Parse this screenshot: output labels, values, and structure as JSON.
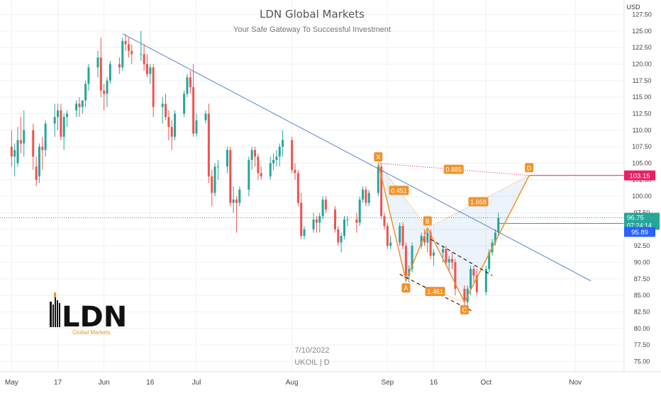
{
  "header": {
    "title": "LDN Global Markets",
    "subtitle": "Your Safe Gateway To Successful Investment"
  },
  "footer": {
    "date": "7/10/2022",
    "symbol": "UKOIL | D"
  },
  "logo": {
    "letters": "LDN",
    "tagline": "Global Markets"
  },
  "price_scale": {
    "currency": "USD",
    "current_price": "96.75",
    "countdown": "07:24:14",
    "level_blue": "95.89",
    "level_red": "103.15"
  },
  "colors": {
    "bull": "#26a69a",
    "bear": "#ef5350",
    "trendline": "#5b7fd6",
    "pattern": "#f0922b",
    "target": "#e91e63",
    "price_badge": "#26a69a",
    "level_badge": "#2962ff"
  },
  "chart_data": {
    "type": "candlestick",
    "instrument": "UKOIL",
    "timeframe": "D",
    "ylim": [
      75,
      127.5
    ],
    "y_ticks": [
      75,
      77.5,
      80,
      82.5,
      85,
      87.5,
      90,
      92.5,
      95,
      97.5,
      100,
      102.5,
      105,
      107.5,
      110,
      112.5,
      115,
      117.5,
      120,
      122.5,
      125,
      127.5
    ],
    "x_ticks": [
      {
        "label": "May",
        "date": "2022-05-02"
      },
      {
        "label": "17",
        "date": "2022-05-17"
      },
      {
        "label": "Jun",
        "date": "2022-06-01"
      },
      {
        "label": "16",
        "date": "2022-06-16"
      },
      {
        "label": "Jul",
        "date": "2022-07-01"
      },
      {
        "label": "Aug",
        "date": "2022-08-01"
      },
      {
        "label": "Sep",
        "date": "2022-09-01"
      },
      {
        "label": "16",
        "date": "2022-09-16"
      },
      {
        "label": "Oct",
        "date": "2022-10-03"
      },
      {
        "label": "Nov",
        "date": "2022-11-01"
      }
    ],
    "candles": [
      {
        "d": "2022-05-02",
        "o": 107.5,
        "h": 110,
        "l": 104.5,
        "c": 106
      },
      {
        "d": "2022-05-03",
        "o": 106,
        "h": 108,
        "l": 103,
        "c": 107
      },
      {
        "d": "2022-05-04",
        "o": 105,
        "h": 110.5,
        "l": 104.5,
        "c": 108.5
      },
      {
        "d": "2022-05-05",
        "o": 108.5,
        "h": 112,
        "l": 106.5,
        "c": 108
      },
      {
        "d": "2022-05-06",
        "o": 108,
        "h": 113,
        "l": 106,
        "c": 110
      },
      {
        "d": "2022-05-09",
        "o": 110,
        "h": 111,
        "l": 104,
        "c": 106
      },
      {
        "d": "2022-05-10",
        "o": 104.5,
        "h": 106,
        "l": 101.5,
        "c": 102.5
      },
      {
        "d": "2022-05-11",
        "o": 103,
        "h": 108,
        "l": 102,
        "c": 107.5
      },
      {
        "d": "2022-05-12",
        "o": 107.5,
        "h": 109,
        "l": 104,
        "c": 107
      },
      {
        "d": "2022-05-13",
        "o": 107,
        "h": 111.5,
        "l": 106,
        "c": 111
      },
      {
        "d": "2022-05-16",
        "o": 111,
        "h": 114,
        "l": 109,
        "c": 112
      },
      {
        "d": "2022-05-17",
        "o": 112,
        "h": 114,
        "l": 110,
        "c": 113
      },
      {
        "d": "2022-05-18",
        "o": 113,
        "h": 114,
        "l": 108.5,
        "c": 109
      },
      {
        "d": "2022-05-19",
        "o": 109,
        "h": 112.5,
        "l": 107,
        "c": 112
      },
      {
        "d": "2022-05-20",
        "o": 112,
        "h": 113,
        "l": 110.5,
        "c": 112.5
      },
      {
        "d": "2022-05-23",
        "o": 113,
        "h": 114.5,
        "l": 112,
        "c": 114
      },
      {
        "d": "2022-05-24",
        "o": 114,
        "h": 115,
        "l": 112,
        "c": 113.5
      },
      {
        "d": "2022-05-25",
        "o": 113.5,
        "h": 114.5,
        "l": 112.5,
        "c": 114.5
      },
      {
        "d": "2022-05-26",
        "o": 114.5,
        "h": 117.5,
        "l": 113.5,
        "c": 117
      },
      {
        "d": "2022-05-27",
        "o": 117,
        "h": 120,
        "l": 116,
        "c": 119.5
      },
      {
        "d": "2022-05-30",
        "o": 119.5,
        "h": 122,
        "l": 118,
        "c": 121
      },
      {
        "d": "2022-05-31",
        "o": 121,
        "h": 124,
        "l": 115,
        "c": 116
      },
      {
        "d": "2022-06-01",
        "o": 116,
        "h": 117,
        "l": 113,
        "c": 115.5
      },
      {
        "d": "2022-06-02",
        "o": 115.5,
        "h": 118,
        "l": 113.5,
        "c": 117.5
      },
      {
        "d": "2022-06-03",
        "o": 117.5,
        "h": 120.5,
        "l": 117,
        "c": 120
      },
      {
        "d": "2022-06-06",
        "o": 120,
        "h": 121,
        "l": 118.5,
        "c": 119.5
      },
      {
        "d": "2022-06-07",
        "o": 119.5,
        "h": 124,
        "l": 119,
        "c": 123.5
      },
      {
        "d": "2022-06-08",
        "o": 123.5,
        "h": 124.5,
        "l": 122,
        "c": 123
      },
      {
        "d": "2022-06-09",
        "o": 123,
        "h": 124,
        "l": 121,
        "c": 122
      },
      {
        "d": "2022-06-10",
        "o": 122,
        "h": 123,
        "l": 120,
        "c": 121.5
      },
      {
        "d": "2022-06-13",
        "o": 121.5,
        "h": 125,
        "l": 120.5,
        "c": 121.5
      },
      {
        "d": "2022-06-14",
        "o": 121.5,
        "h": 123,
        "l": 119,
        "c": 120
      },
      {
        "d": "2022-06-15",
        "o": 120,
        "h": 121.5,
        "l": 118,
        "c": 118.5
      },
      {
        "d": "2022-06-16",
        "o": 118.5,
        "h": 120,
        "l": 117,
        "c": 119.5
      },
      {
        "d": "2022-06-17",
        "o": 119.5,
        "h": 120,
        "l": 112,
        "c": 113.5
      },
      {
        "d": "2022-06-20",
        "o": 113.5,
        "h": 115,
        "l": 111,
        "c": 114
      },
      {
        "d": "2022-06-21",
        "o": 114,
        "h": 115.5,
        "l": 111.5,
        "c": 112
      },
      {
        "d": "2022-06-22",
        "o": 112,
        "h": 113,
        "l": 108.5,
        "c": 110.5
      },
      {
        "d": "2022-06-23",
        "o": 110.5,
        "h": 111.5,
        "l": 107,
        "c": 109
      },
      {
        "d": "2022-06-24",
        "o": 109,
        "h": 113,
        "l": 108.5,
        "c": 112.5
      },
      {
        "d": "2022-06-27",
        "o": 112.5,
        "h": 116,
        "l": 112,
        "c": 115.5
      },
      {
        "d": "2022-06-28",
        "o": 115.5,
        "h": 118.5,
        "l": 115,
        "c": 118
      },
      {
        "d": "2022-06-29",
        "o": 118,
        "h": 119,
        "l": 115.5,
        "c": 116.5
      },
      {
        "d": "2022-06-30",
        "o": 116.5,
        "h": 120,
        "l": 109,
        "c": 109.5
      },
      {
        "d": "2022-07-01",
        "o": 109.5,
        "h": 112.5,
        "l": 109,
        "c": 111.5
      },
      {
        "d": "2022-07-04",
        "o": 111.5,
        "h": 113,
        "l": 111,
        "c": 112.5
      },
      {
        "d": "2022-07-05",
        "o": 112.5,
        "h": 114,
        "l": 102,
        "c": 103
      },
      {
        "d": "2022-07-06",
        "o": 103,
        "h": 104,
        "l": 98.5,
        "c": 100.5
      },
      {
        "d": "2022-07-07",
        "o": 100.5,
        "h": 105,
        "l": 100,
        "c": 104.5
      },
      {
        "d": "2022-07-08",
        "o": 104.5,
        "h": 105.5,
        "l": 102.5,
        "c": 104.5
      },
      {
        "d": "2022-07-11",
        "o": 104.5,
        "h": 107.5,
        "l": 103.5,
        "c": 107
      },
      {
        "d": "2022-07-12",
        "o": 107,
        "h": 107.5,
        "l": 98.5,
        "c": 99
      },
      {
        "d": "2022-07-13",
        "o": 99,
        "h": 101.5,
        "l": 97.5,
        "c": 99.5
      },
      {
        "d": "2022-07-14",
        "o": 99.5,
        "h": 100,
        "l": 94.5,
        "c": 99
      },
      {
        "d": "2022-07-15",
        "o": 99,
        "h": 101.5,
        "l": 98.5,
        "c": 101
      },
      {
        "d": "2022-07-18",
        "o": 101,
        "h": 106,
        "l": 100,
        "c": 105.5
      },
      {
        "d": "2022-07-19",
        "o": 105.5,
        "h": 107.5,
        "l": 104,
        "c": 107
      },
      {
        "d": "2022-07-20",
        "o": 107,
        "h": 107.5,
        "l": 104.5,
        "c": 106
      },
      {
        "d": "2022-07-21",
        "o": 106,
        "h": 106.5,
        "l": 102.5,
        "c": 103.5
      },
      {
        "d": "2022-07-22",
        "o": 103.5,
        "h": 104.5,
        "l": 102.5,
        "c": 103
      },
      {
        "d": "2022-07-25",
        "o": 103,
        "h": 106,
        "l": 102.5,
        "c": 105
      },
      {
        "d": "2022-07-26",
        "o": 105,
        "h": 106.5,
        "l": 104,
        "c": 105.5
      },
      {
        "d": "2022-07-27",
        "o": 105.5,
        "h": 107,
        "l": 104.5,
        "c": 106
      },
      {
        "d": "2022-07-28",
        "o": 106,
        "h": 108,
        "l": 104.5,
        "c": 107.5
      },
      {
        "d": "2022-07-29",
        "o": 107.5,
        "h": 110,
        "l": 106,
        "c": 108.5
      },
      {
        "d": "2022-08-01",
        "o": 108.5,
        "h": 109,
        "l": 103.5,
        "c": 104
      },
      {
        "d": "2022-08-02",
        "o": 104,
        "h": 105,
        "l": 102.5,
        "c": 103.5
      },
      {
        "d": "2022-08-03",
        "o": 103.5,
        "h": 104,
        "l": 98.5,
        "c": 99
      },
      {
        "d": "2022-08-04",
        "o": 99,
        "h": 100.5,
        "l": 93.5,
        "c": 94
      },
      {
        "d": "2022-08-05",
        "o": 94,
        "h": 95.5,
        "l": 93.5,
        "c": 95
      },
      {
        "d": "2022-08-08",
        "o": 95,
        "h": 97.5,
        "l": 94.5,
        "c": 96.5
      },
      {
        "d": "2022-08-09",
        "o": 96.5,
        "h": 97,
        "l": 94.5,
        "c": 96
      },
      {
        "d": "2022-08-10",
        "o": 96,
        "h": 97.5,
        "l": 94.5,
        "c": 97
      },
      {
        "d": "2022-08-11",
        "o": 97,
        "h": 100,
        "l": 96.5,
        "c": 99.5
      },
      {
        "d": "2022-08-12",
        "o": 99.5,
        "h": 100,
        "l": 97.5,
        "c": 98
      },
      {
        "d": "2022-08-15",
        "o": 98,
        "h": 98.5,
        "l": 94.5,
        "c": 95
      },
      {
        "d": "2022-08-16",
        "o": 95,
        "h": 95.5,
        "l": 92.5,
        "c": 93
      },
      {
        "d": "2022-08-17",
        "o": 93,
        "h": 94.5,
        "l": 91.5,
        "c": 94
      },
      {
        "d": "2022-08-18",
        "o": 94,
        "h": 97,
        "l": 93.5,
        "c": 96.5
      },
      {
        "d": "2022-08-19",
        "o": 96.5,
        "h": 97,
        "l": 95.5,
        "c": 96.5
      },
      {
        "d": "2022-08-22",
        "o": 96.5,
        "h": 97.5,
        "l": 94.5,
        "c": 96
      },
      {
        "d": "2022-08-23",
        "o": 96,
        "h": 100,
        "l": 95.5,
        "c": 99.5
      },
      {
        "d": "2022-08-24",
        "o": 99.5,
        "h": 101.5,
        "l": 99,
        "c": 101
      },
      {
        "d": "2022-08-25",
        "o": 101,
        "h": 101.5,
        "l": 98.5,
        "c": 99
      },
      {
        "d": "2022-08-26",
        "o": 99,
        "h": 101,
        "l": 98.5,
        "c": 100.5
      },
      {
        "d": "2022-08-29",
        "o": 100.5,
        "h": 105,
        "l": 100,
        "c": 104.5
      },
      {
        "d": "2022-08-30",
        "o": 104.5,
        "h": 105,
        "l": 96.5,
        "c": 97
      },
      {
        "d": "2022-08-31",
        "o": 97,
        "h": 97.5,
        "l": 95,
        "c": 95.5
      },
      {
        "d": "2022-09-01",
        "o": 95.5,
        "h": 96,
        "l": 92,
        "c": 92.5
      },
      {
        "d": "2022-09-02",
        "o": 92.5,
        "h": 94,
        "l": 92,
        "c": 93
      },
      {
        "d": "2022-09-05",
        "o": 93,
        "h": 96,
        "l": 92.5,
        "c": 95.5
      },
      {
        "d": "2022-09-06",
        "o": 95.5,
        "h": 96,
        "l": 92,
        "c": 92.5
      },
      {
        "d": "2022-09-07",
        "o": 92.5,
        "h": 93,
        "l": 87,
        "c": 88
      },
      {
        "d": "2022-09-08",
        "o": 88,
        "h": 89.5,
        "l": 87,
        "c": 89
      },
      {
        "d": "2022-09-09",
        "o": 89,
        "h": 93,
        "l": 88.5,
        "c": 92.5
      },
      {
        "d": "2022-09-12",
        "o": 92.5,
        "h": 94.5,
        "l": 92,
        "c": 94
      },
      {
        "d": "2022-09-13",
        "o": 94,
        "h": 95,
        "l": 92.5,
        "c": 93
      },
      {
        "d": "2022-09-14",
        "o": 93,
        "h": 95,
        "l": 91.5,
        "c": 94.5
      },
      {
        "d": "2022-09-15",
        "o": 94.5,
        "h": 95,
        "l": 90.5,
        "c": 91
      },
      {
        "d": "2022-09-16",
        "o": 91,
        "h": 92,
        "l": 89.5,
        "c": 91.5
      },
      {
        "d": "2022-09-19",
        "o": 91.5,
        "h": 92.5,
        "l": 90,
        "c": 92
      },
      {
        "d": "2022-09-20",
        "o": 92,
        "h": 92.5,
        "l": 89.5,
        "c": 90
      },
      {
        "d": "2022-09-21",
        "o": 90,
        "h": 91,
        "l": 88.5,
        "c": 90.5
      },
      {
        "d": "2022-09-22",
        "o": 90.5,
        "h": 91.5,
        "l": 89,
        "c": 90
      },
      {
        "d": "2022-09-23",
        "o": 90,
        "h": 90.5,
        "l": 85,
        "c": 86
      },
      {
        "d": "2022-09-26",
        "o": 86,
        "h": 86.5,
        "l": 83.5,
        "c": 84
      },
      {
        "d": "2022-09-27",
        "o": 84,
        "h": 86.5,
        "l": 83.5,
        "c": 86
      },
      {
        "d": "2022-09-28",
        "o": 86,
        "h": 89.5,
        "l": 85,
        "c": 89
      },
      {
        "d": "2022-09-29",
        "o": 89,
        "h": 89.5,
        "l": 87,
        "c": 88
      },
      {
        "d": "2022-09-30",
        "o": 88,
        "h": 89,
        "l": 85,
        "c": 85.5
      },
      {
        "d": "2022-10-03",
        "o": 85.5,
        "h": 89.5,
        "l": 85,
        "c": 89
      },
      {
        "d": "2022-10-04",
        "o": 89,
        "h": 92,
        "l": 88.5,
        "c": 91.5
      },
      {
        "d": "2022-10-05",
        "o": 91.5,
        "h": 93.5,
        "l": 91,
        "c": 93
      },
      {
        "d": "2022-10-06",
        "o": 93,
        "h": 95,
        "l": 92.5,
        "c": 94.5
      },
      {
        "d": "2022-10-07",
        "o": 94.5,
        "h": 97.5,
        "l": 94,
        "c": 96.75
      }
    ],
    "trendline": {
      "from": {
        "d": "2022-06-07",
        "v": 124.6
      },
      "to": {
        "d": "2022-11-06",
        "v": 87.2
      }
    },
    "harmonic_pattern": {
      "points": [
        {
          "label": "X",
          "d": "2022-08-29",
          "v": 105.0
        },
        {
          "label": "A",
          "d": "2022-09-07",
          "v": 87.2
        },
        {
          "label": "B",
          "d": "2022-09-14",
          "v": 95.2
        },
        {
          "label": "C",
          "d": "2022-09-26",
          "v": 84.0
        },
        {
          "label": "D",
          "d": "2022-10-17",
          "v": 103.15
        }
      ],
      "ratios": [
        {
          "label": "0.451",
          "between": [
            "X",
            "B"
          ]
        },
        {
          "label": "1.461",
          "between": [
            "A",
            "C"
          ]
        },
        {
          "label": "1.658",
          "between": [
            "B",
            "D"
          ]
        },
        {
          "label": "0.885",
          "between": [
            "X",
            "D"
          ]
        }
      ]
    },
    "channel_lines": [
      {
        "from": {
          "d": "2022-09-05",
          "v": 88.2
        },
        "to": {
          "d": "2022-09-29",
          "v": 82.5
        }
      },
      {
        "from": {
          "d": "2022-09-15",
          "v": 93.5
        },
        "to": {
          "d": "2022-10-05",
          "v": 88.0
        }
      }
    ],
    "horizontal_levels": [
      {
        "value": 103.15,
        "label": "103.15",
        "start": "2022-10-17"
      },
      {
        "value": 95.89,
        "label": "95.89",
        "start": "2022-10-07"
      }
    ],
    "current_price": 96.75
  }
}
